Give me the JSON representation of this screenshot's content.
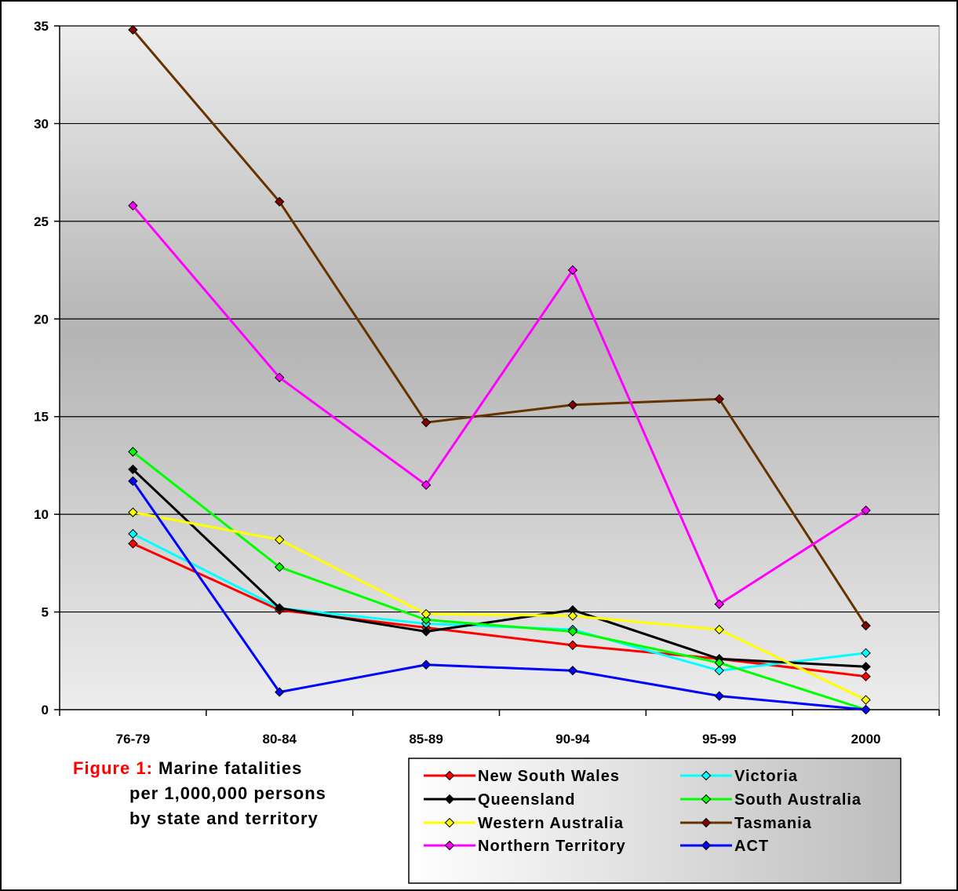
{
  "chart_data": {
    "type": "line",
    "categories": [
      "76-79",
      "80-84",
      "85-89",
      "90-94",
      "95-99",
      "2000"
    ],
    "ylim": [
      0,
      35
    ],
    "yticks": [
      0,
      5,
      10,
      15,
      20,
      25,
      30,
      35
    ],
    "grid": true,
    "legend_position": "bottom-right",
    "series": [
      {
        "name": "New South Wales",
        "color": "#ff0000",
        "marker": "#ff0000",
        "values": [
          8.5,
          5.1,
          4.2,
          3.3,
          2.6,
          1.7
        ]
      },
      {
        "name": "Victoria",
        "color": "#00ffff",
        "marker": "#00ffff",
        "values": [
          9.0,
          5.2,
          4.4,
          4.1,
          2.0,
          2.9
        ]
      },
      {
        "name": "Queensland",
        "color": "#000000",
        "marker": "#000000",
        "values": [
          12.3,
          5.2,
          4.0,
          5.1,
          2.6,
          2.2
        ]
      },
      {
        "name": "South Australia",
        "color": "#00ff00",
        "marker": "#00ff00",
        "values": [
          13.2,
          7.3,
          4.6,
          4.0,
          2.4,
          0.0
        ]
      },
      {
        "name": "Western Australia",
        "color": "#ffff00",
        "marker": "#ffff00",
        "values": [
          10.1,
          8.7,
          4.9,
          4.8,
          4.1,
          0.5
        ]
      },
      {
        "name": "Tasmania",
        "color": "#663300",
        "marker": "#800000",
        "values": [
          34.8,
          26.0,
          14.7,
          15.6,
          15.9,
          4.3
        ]
      },
      {
        "name": "Northern Territory",
        "color": "#ff00ff",
        "marker": "#ff00ff",
        "values": [
          25.8,
          17.0,
          11.5,
          22.5,
          5.4,
          10.2
        ]
      },
      {
        "name": "ACT",
        "color": "#0000ff",
        "marker": "#0000ff",
        "values": [
          11.7,
          0.9,
          2.3,
          2.0,
          0.7,
          0.0
        ]
      }
    ]
  },
  "caption": {
    "lead": "Figure 1:",
    "line1": "Marine fatalities",
    "line2": "per 1,000,000 persons",
    "line3": "by state and territory"
  }
}
